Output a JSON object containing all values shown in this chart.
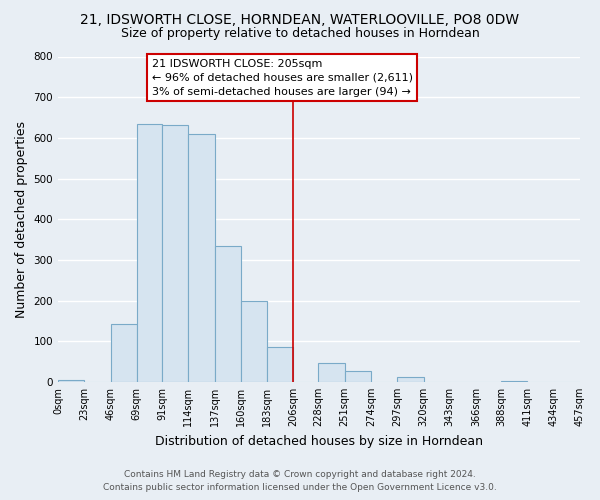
{
  "title": "21, IDSWORTH CLOSE, HORNDEAN, WATERLOOVILLE, PO8 0DW",
  "subtitle": "Size of property relative to detached houses in Horndean",
  "xlabel": "Distribution of detached houses by size in Horndean",
  "ylabel": "Number of detached properties",
  "bar_color": "#d6e4f0",
  "bar_edge_color": "#7aaac8",
  "bin_edges": [
    0,
    23,
    46,
    69,
    91,
    114,
    137,
    160,
    183,
    206,
    228,
    251,
    274,
    297,
    320,
    343,
    366,
    388,
    411,
    434,
    457
  ],
  "bar_heights": [
    5,
    0,
    143,
    635,
    632,
    610,
    333,
    200,
    85,
    0,
    47,
    28,
    0,
    13,
    0,
    0,
    0,
    3,
    0,
    0
  ],
  "tick_labels": [
    "0sqm",
    "23sqm",
    "46sqm",
    "69sqm",
    "91sqm",
    "114sqm",
    "137sqm",
    "160sqm",
    "183sqm",
    "206sqm",
    "228sqm",
    "251sqm",
    "274sqm",
    "297sqm",
    "320sqm",
    "343sqm",
    "366sqm",
    "388sqm",
    "411sqm",
    "434sqm",
    "457sqm"
  ],
  "ylim": [
    0,
    800
  ],
  "yticks": [
    0,
    100,
    200,
    300,
    400,
    500,
    600,
    700,
    800
  ],
  "property_line_x": 206,
  "property_line_color": "#cc0000",
  "annotation_title": "21 IDSWORTH CLOSE: 205sqm",
  "annotation_line1": "← 96% of detached houses are smaller (2,611)",
  "annotation_line2": "3% of semi-detached houses are larger (94) →",
  "annotation_box_color": "#ffffff",
  "annotation_box_edge": "#cc0000",
  "footer_line1": "Contains HM Land Registry data © Crown copyright and database right 2024.",
  "footer_line2": "Contains public sector information licensed under the Open Government Licence v3.0.",
  "background_color": "#e8eef4",
  "plot_bg_color": "#e8eef4",
  "grid_color": "#ffffff",
  "title_fontsize": 10,
  "subtitle_fontsize": 9,
  "axis_label_fontsize": 9,
  "tick_fontsize": 7,
  "annotation_fontsize": 8,
  "footer_fontsize": 6.5
}
